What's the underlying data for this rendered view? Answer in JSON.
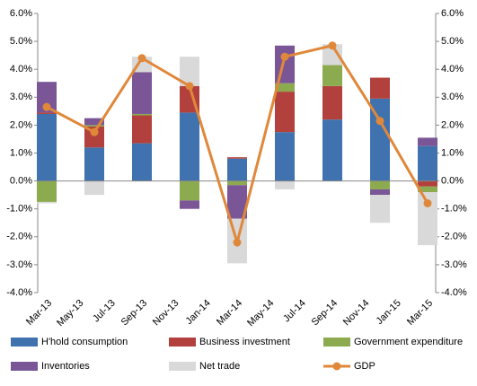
{
  "chart_data": {
    "type": "bar",
    "categories": [
      "Mar-13",
      null,
      "May-13",
      null,
      "Jul-13",
      null,
      "Sep-13",
      null,
      "Nov-13",
      null,
      "Jan-14",
      null,
      "Mar-14",
      null,
      "May-14",
      null,
      "Jul-14",
      null,
      "Sep-14",
      null,
      "Nov-14",
      null,
      "Jan-15",
      null,
      "Mar-15"
    ],
    "series": [
      {
        "name": "H'hold consumption",
        "color": "#3f72ae",
        "values": [
          2.4,
          null,
          null,
          1.2,
          null,
          null,
          1.35,
          null,
          null,
          2.45,
          null,
          null,
          0.8,
          null,
          null,
          1.75,
          null,
          null,
          2.2,
          null,
          null,
          2.95,
          null,
          null,
          1.25
        ]
      },
      {
        "name": "Business investment",
        "color": "#b2413d",
        "values": [
          0.05,
          null,
          null,
          0.75,
          null,
          null,
          1.0,
          null,
          null,
          0.95,
          null,
          null,
          0.05,
          null,
          null,
          1.45,
          null,
          null,
          1.2,
          null,
          null,
          0.75,
          null,
          null,
          -0.2
        ]
      },
      {
        "name": "Government expenditure",
        "color": "#8cab4e",
        "values": [
          -0.75,
          null,
          null,
          0.05,
          null,
          null,
          0.05,
          null,
          null,
          -0.7,
          null,
          null,
          -0.15,
          null,
          null,
          0.3,
          null,
          null,
          0.75,
          null,
          null,
          -0.3,
          null,
          null,
          -0.2
        ]
      },
      {
        "name": "Inventories",
        "color": "#7a5697",
        "values": [
          1.1,
          null,
          null,
          0.25,
          null,
          null,
          1.5,
          null,
          null,
          -0.3,
          null,
          null,
          -1.2,
          null,
          null,
          1.35,
          null,
          null,
          0,
          null,
          null,
          -0.2,
          null,
          null,
          0.3
        ]
      },
      {
        "name": "Net trade",
        "color": "#d9d9d9",
        "values": [
          -0.05,
          null,
          null,
          -0.5,
          null,
          null,
          0.55,
          null,
          null,
          1.05,
          null,
          null,
          -1.6,
          null,
          null,
          -0.3,
          null,
          null,
          0.75,
          null,
          null,
          -1.0,
          null,
          null,
          -1.9
        ]
      },
      {
        "name": "GDP",
        "type": "line",
        "color": "#e0883a",
        "values": [
          2.65,
          null,
          null,
          1.75,
          null,
          null,
          4.4,
          null,
          null,
          3.4,
          null,
          null,
          -2.2,
          null,
          null,
          4.45,
          null,
          null,
          4.85,
          null,
          null,
          2.15,
          null,
          null,
          -0.8
        ]
      }
    ],
    "ylim": [
      -4,
      6
    ],
    "yticks": [
      {
        "value": -4,
        "label": "-4.0%"
      },
      {
        "value": -3,
        "label": "-3.0%"
      },
      {
        "value": -2,
        "label": "-2.0%"
      },
      {
        "value": -1,
        "label": "-1.0%"
      },
      {
        "value": 0,
        "label": "0.0%"
      },
      {
        "value": 1,
        "label": "1.0%"
      },
      {
        "value": 2,
        "label": "2.0%"
      },
      {
        "value": 3,
        "label": "3.0%"
      },
      {
        "value": 4,
        "label": "4.0%"
      },
      {
        "value": 5,
        "label": "5.0%"
      },
      {
        "value": 6,
        "label": "6.0%"
      }
    ],
    "y2lim": [
      -4,
      6
    ],
    "y2ticks": [
      {
        "value": -4,
        "label": "-4.0%"
      },
      {
        "value": -3,
        "label": "-3.0%"
      },
      {
        "value": -2,
        "label": "-2.0%"
      },
      {
        "value": -1,
        "label": "-1.0%"
      },
      {
        "value": 0,
        "label": "0.0%"
      },
      {
        "value": 1,
        "label": "1.0%"
      },
      {
        "value": 2,
        "label": "2.0%"
      },
      {
        "value": 3,
        "label": "3.0%"
      },
      {
        "value": 4,
        "label": "4.0%"
      },
      {
        "value": 5,
        "label": "5.0%"
      },
      {
        "value": 6,
        "label": "6.0%"
      }
    ],
    "legend": "bottom"
  }
}
